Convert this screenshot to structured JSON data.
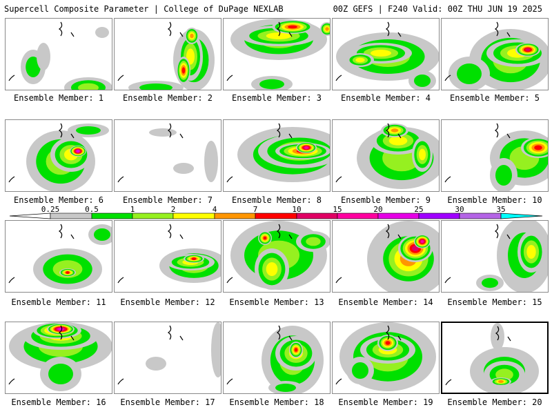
{
  "header": {
    "left": "Supercell Composite Parameter | College of DuPage NEXLAB",
    "right": "00Z GEFS | F240 Valid: 00Z THU JUN 19 2025"
  },
  "panel_label_prefix": "Ensemble Member: ",
  "members": [
    1,
    2,
    3,
    4,
    5,
    6,
    7,
    8,
    9,
    10,
    11,
    12,
    13,
    14,
    15,
    16,
    17,
    18,
    19,
    20
  ],
  "selected_member": 20,
  "colorbar": {
    "ticks": [
      "0.25",
      "0.5",
      "1",
      "2",
      "4",
      "7",
      "10",
      "15",
      "20",
      "25",
      "30",
      "35"
    ],
    "colors": {
      "below": "#ffffff",
      "bins": [
        "#c8c8c8",
        "#00e000",
        "#96f020",
        "#ffff00",
        "#ff9600",
        "#ff0000",
        "#e00064",
        "#ff00a0",
        "#e600e6",
        "#a000ff",
        "#b464e6",
        "#00ffff"
      ]
    }
  },
  "icons": {
    "coastline": "coastline-outline"
  }
}
